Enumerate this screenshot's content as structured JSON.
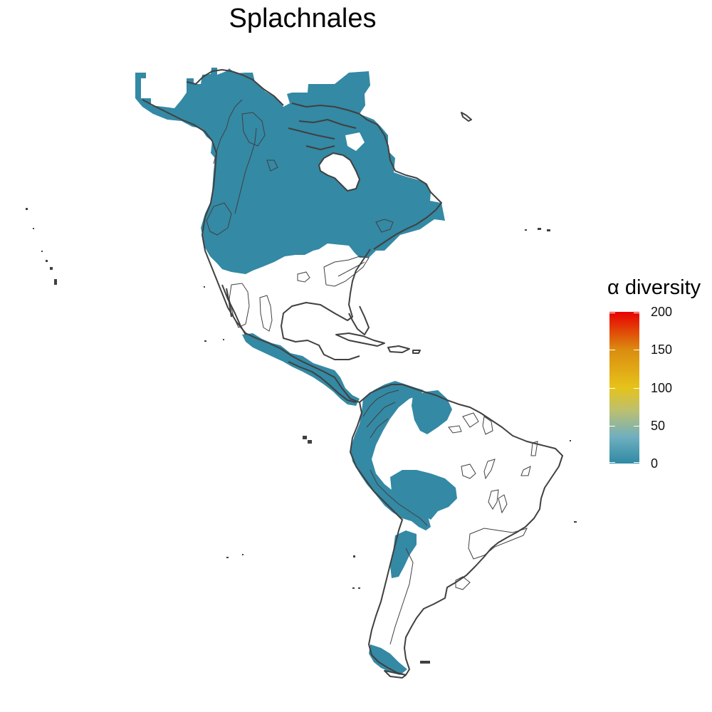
{
  "title": "Splachnales",
  "legend": {
    "title": "α diversity",
    "min": 0,
    "max": 200,
    "ticks": [
      {
        "value": 200,
        "label": "200"
      },
      {
        "value": 150,
        "label": "150"
      },
      {
        "value": 100,
        "label": "100"
      },
      {
        "value": 50,
        "label": "50"
      },
      {
        "value": 0,
        "label": "0"
      }
    ],
    "gradient_stops": [
      {
        "value": 0,
        "color": "#2F8AA3"
      },
      {
        "value": 35,
        "color": "#6FAFC0"
      },
      {
        "value": 70,
        "color": "#BCC070"
      },
      {
        "value": 100,
        "color": "#E6C31B"
      },
      {
        "value": 150,
        "color": "#DB8C10"
      },
      {
        "value": 200,
        "color": "#E80000"
      }
    ]
  },
  "colors": {
    "occupied_fill": "#3489A4",
    "outline": "#404040",
    "background": "#FFFFFF"
  },
  "occupied_value": 5
}
